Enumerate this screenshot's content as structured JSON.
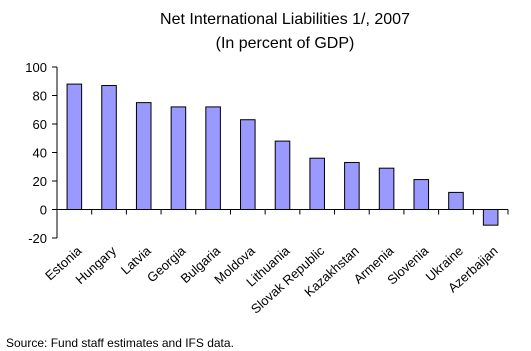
{
  "chart_data": {
    "type": "bar",
    "title": "Net International Liabilities 1/, 2007",
    "subtitle": "(In percent of GDP)",
    "xlabel": "",
    "ylabel": "",
    "categories": [
      "Estonia",
      "Hungary",
      "Latvia",
      "Georgia",
      "Bulgaria",
      "Moldova",
      "Lithuania",
      "Slovak Republic",
      "Kazakhstan",
      "Armenia",
      "Slovenia",
      "Ukraine",
      "Azerbaijan"
    ],
    "values": [
      88,
      87,
      75,
      72,
      72,
      63,
      48,
      36,
      33,
      29,
      21,
      12,
      -11
    ],
    "ylim": [
      -20,
      100
    ],
    "yticks": [
      -20,
      0,
      20,
      40,
      60,
      80,
      100
    ],
    "grid": false,
    "legend": "none",
    "bar_color": "#9999ff",
    "bar_edge_color": "#000000"
  },
  "source_note": "Source: Fund staff estimates and IFS data."
}
